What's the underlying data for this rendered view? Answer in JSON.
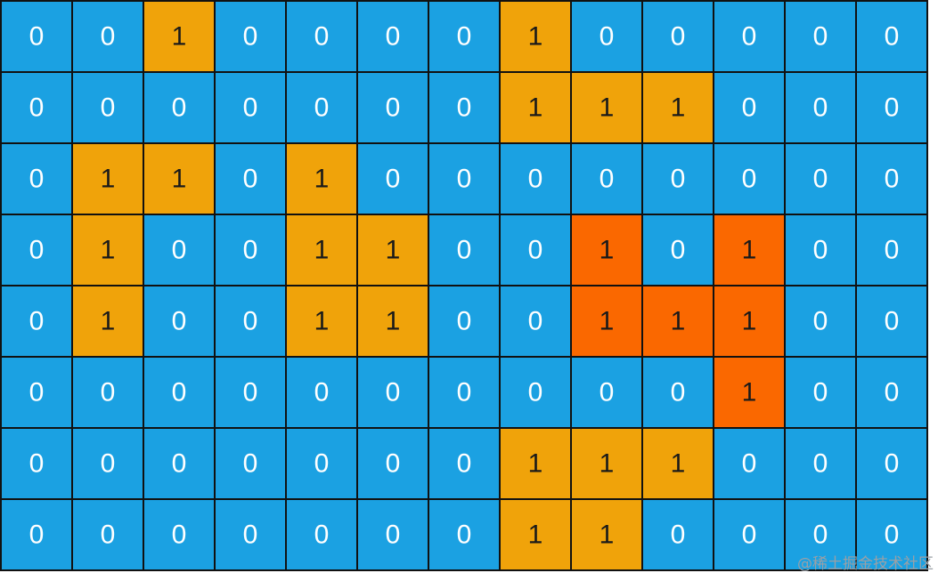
{
  "grid": {
    "rows": [
      [
        "0",
        "0",
        "1",
        "0",
        "0",
        "0",
        "0",
        "1",
        "0",
        "0",
        "0",
        "0",
        "0"
      ],
      [
        "0",
        "0",
        "0",
        "0",
        "0",
        "0",
        "0",
        "1",
        "1",
        "1",
        "0",
        "0",
        "0"
      ],
      [
        "0",
        "1",
        "1",
        "0",
        "1",
        "0",
        "0",
        "0",
        "0",
        "0",
        "0",
        "0",
        "0"
      ],
      [
        "0",
        "1",
        "0",
        "0",
        "1",
        "1",
        "0",
        "0",
        "1",
        "0",
        "1",
        "0",
        "0"
      ],
      [
        "0",
        "1",
        "0",
        "0",
        "1",
        "1",
        "0",
        "0",
        "1",
        "1",
        "1",
        "0",
        "0"
      ],
      [
        "0",
        "0",
        "0",
        "0",
        "0",
        "0",
        "0",
        "0",
        "0",
        "0",
        "1",
        "0",
        "0"
      ],
      [
        "0",
        "0",
        "0",
        "0",
        "0",
        "0",
        "0",
        "1",
        "1",
        "1",
        "0",
        "0",
        "0"
      ],
      [
        "0",
        "0",
        "0",
        "0",
        "0",
        "0",
        "0",
        "1",
        "1",
        "0",
        "0",
        "0",
        "0"
      ]
    ],
    "fills": [
      [
        "#1ba1e2",
        "#1ba1e2",
        "#f0a30a",
        "#1ba1e2",
        "#1ba1e2",
        "#1ba1e2",
        "#1ba1e2",
        "#f0a30a",
        "#1ba1e2",
        "#1ba1e2",
        "#1ba1e2",
        "#1ba1e2",
        "#1ba1e2"
      ],
      [
        "#1ba1e2",
        "#1ba1e2",
        "#1ba1e2",
        "#1ba1e2",
        "#1ba1e2",
        "#1ba1e2",
        "#1ba1e2",
        "#f0a30a",
        "#f0a30a",
        "#f0a30a",
        "#1ba1e2",
        "#1ba1e2",
        "#1ba1e2"
      ],
      [
        "#1ba1e2",
        "#f0a30a",
        "#f0a30a",
        "#1ba1e2",
        "#f0a30a",
        "#1ba1e2",
        "#1ba1e2",
        "#1ba1e2",
        "#1ba1e2",
        "#1ba1e2",
        "#1ba1e2",
        "#1ba1e2",
        "#1ba1e2"
      ],
      [
        "#1ba1e2",
        "#f0a30a",
        "#1ba1e2",
        "#1ba1e2",
        "#f0a30a",
        "#f0a30a",
        "#1ba1e2",
        "#1ba1e2",
        "#fa6800",
        "#1ba1e2",
        "#fa6800",
        "#1ba1e2",
        "#1ba1e2"
      ],
      [
        "#1ba1e2",
        "#f0a30a",
        "#1ba1e2",
        "#1ba1e2",
        "#f0a30a",
        "#f0a30a",
        "#1ba1e2",
        "#1ba1e2",
        "#fa6800",
        "#fa6800",
        "#fa6800",
        "#1ba1e2",
        "#1ba1e2"
      ],
      [
        "#1ba1e2",
        "#1ba1e2",
        "#1ba1e2",
        "#1ba1e2",
        "#1ba1e2",
        "#1ba1e2",
        "#1ba1e2",
        "#1ba1e2",
        "#1ba1e2",
        "#1ba1e2",
        "#fa6800",
        "#1ba1e2",
        "#1ba1e2"
      ],
      [
        "#1ba1e2",
        "#1ba1e2",
        "#1ba1e2",
        "#1ba1e2",
        "#1ba1e2",
        "#1ba1e2",
        "#1ba1e2",
        "#f0a30a",
        "#f0a30a",
        "#f0a30a",
        "#1ba1e2",
        "#1ba1e2",
        "#1ba1e2"
      ],
      [
        "#1ba1e2",
        "#1ba1e2",
        "#1ba1e2",
        "#1ba1e2",
        "#1ba1e2",
        "#1ba1e2",
        "#1ba1e2",
        "#f0a30a",
        "#f0a30a",
        "#1ba1e2",
        "#1ba1e2",
        "#1ba1e2",
        "#1ba1e2"
      ]
    ]
  },
  "watermark": "@稀土掘金技术社区"
}
